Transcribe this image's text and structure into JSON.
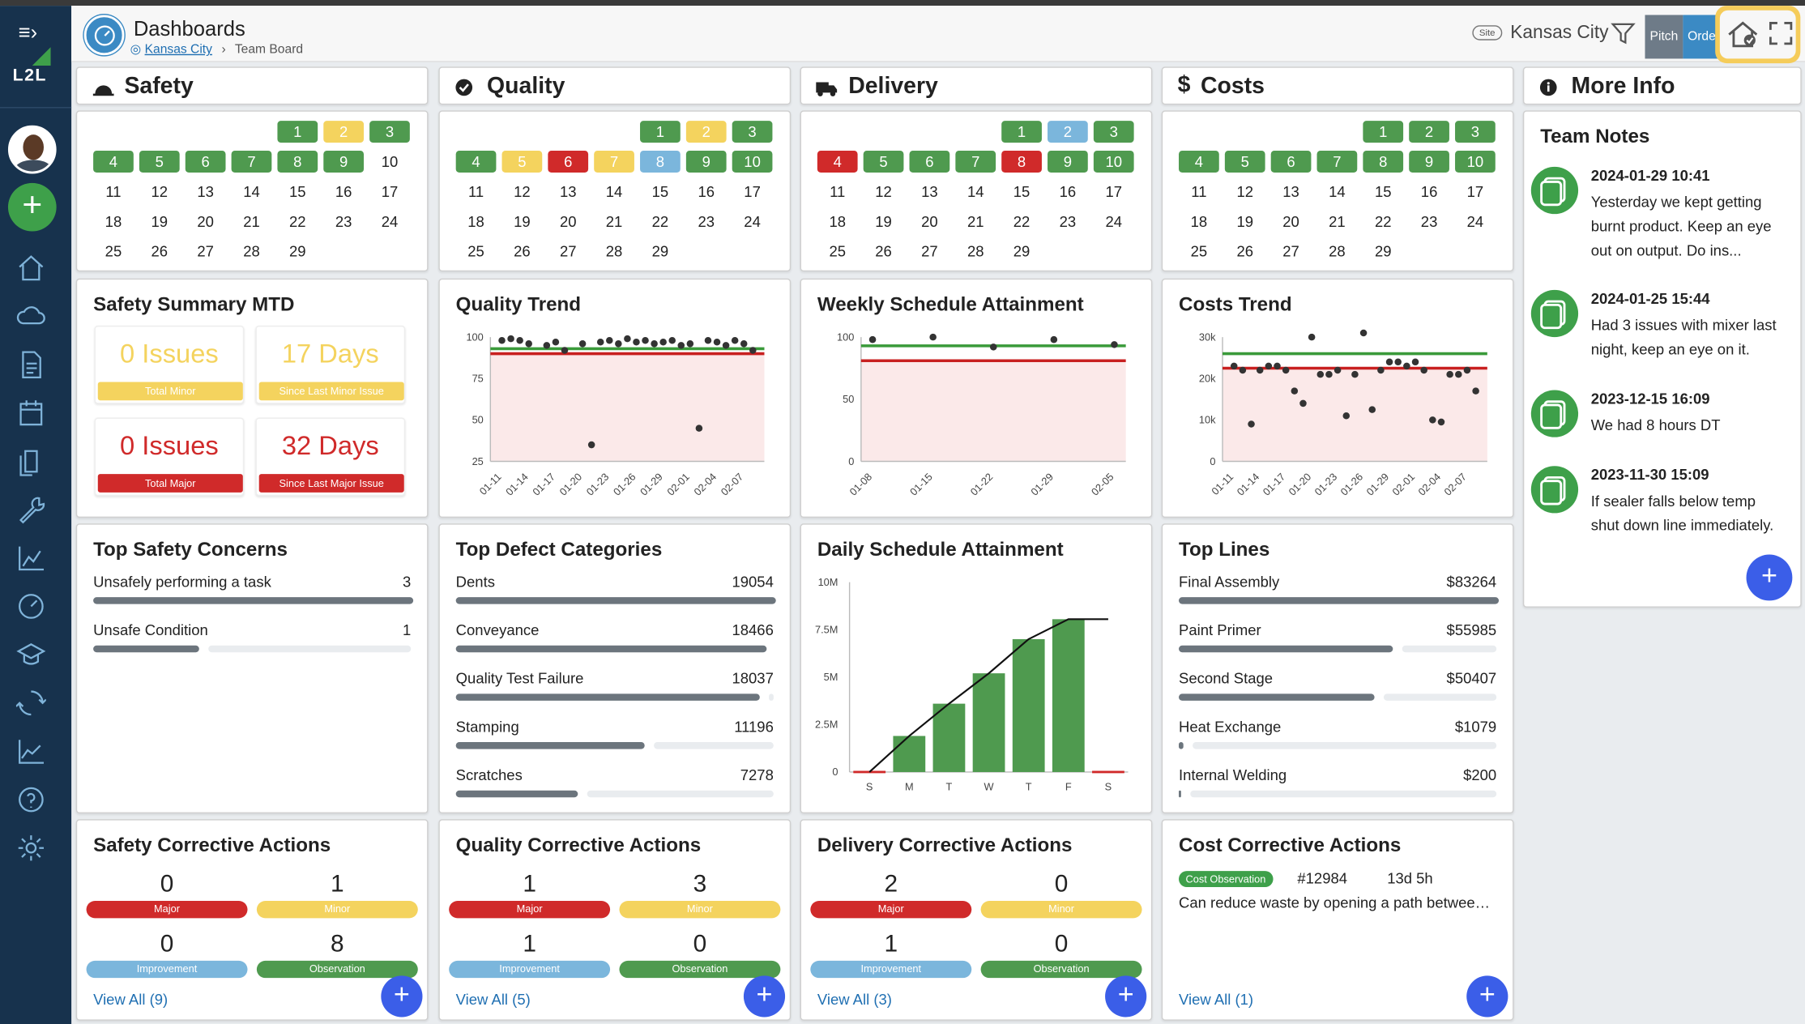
{
  "app": {
    "logo_text": "L2L"
  },
  "header": {
    "title": "Dashboards",
    "crumb_site": "Kansas City",
    "crumb_sep": "›",
    "crumb_page": "Team Board",
    "site_tag": "Site",
    "site_name": "Kansas City",
    "pitch": "Pitch",
    "order": "Order"
  },
  "categories": [
    {
      "name": "Safety",
      "icon": "hard-hat-icon"
    },
    {
      "name": "Quality",
      "icon": "check-circle-icon"
    },
    {
      "name": "Delivery",
      "icon": "truck-icon"
    },
    {
      "name": "Costs",
      "icon": "dollar-icon",
      "prefix": "$"
    },
    {
      "name": "More Info",
      "icon": "info-circle-icon"
    }
  ],
  "colors": {
    "good": "#4f9a4f",
    "minor": "#f4d35e",
    "major": "#d02a2a",
    "improve": "#7bb6dc",
    "accent": "#3b5ee8"
  },
  "calendars": [
    {
      "cat": "Safety",
      "statuses": [
        "g",
        "y",
        "g",
        "g",
        "g",
        "g",
        "g",
        "g",
        "g",
        "n",
        "n",
        "n",
        "n",
        "n",
        "n",
        "n",
        "n",
        "n",
        "n",
        "n",
        "n",
        "n",
        "n",
        "n",
        "n",
        "n",
        "n",
        "n",
        "n"
      ]
    },
    {
      "cat": "Quality",
      "statuses": [
        "g",
        "y",
        "g",
        "g",
        "y",
        "r",
        "y",
        "b",
        "g",
        "g",
        "n",
        "n",
        "n",
        "n",
        "n",
        "n",
        "n",
        "n",
        "n",
        "n",
        "n",
        "n",
        "n",
        "n",
        "n",
        "n",
        "n",
        "n",
        "n"
      ]
    },
    {
      "cat": "Delivery",
      "statuses": [
        "g",
        "b",
        "g",
        "r",
        "g",
        "g",
        "g",
        "r",
        "g",
        "g",
        "n",
        "n",
        "n",
        "n",
        "n",
        "n",
        "n",
        "n",
        "n",
        "n",
        "n",
        "n",
        "n",
        "n",
        "n",
        "n",
        "n",
        "n",
        "n"
      ]
    },
    {
      "cat": "Costs",
      "statuses": [
        "g",
        "g",
        "g",
        "g",
        "g",
        "g",
        "g",
        "g",
        "g",
        "g",
        "n",
        "n",
        "n",
        "n",
        "n",
        "n",
        "n",
        "n",
        "n",
        "n",
        "n",
        "n",
        "n",
        "n",
        "n",
        "n",
        "n",
        "n",
        "n"
      ]
    }
  ],
  "safety_summary": {
    "title": "Safety Summary MTD",
    "stats": [
      {
        "big": "0 Issues",
        "label": "Total Minor",
        "tone": "minor"
      },
      {
        "big": "17 Days",
        "label": "Since Last Minor Issue",
        "tone": "minor"
      },
      {
        "big": "0 Issues",
        "label": "Total Major",
        "tone": "major"
      },
      {
        "big": "32 Days",
        "label": "Since Last Major Issue",
        "tone": "major"
      }
    ]
  },
  "chart_data": [
    {
      "type": "scatter",
      "title": "Quality Trend",
      "x": [
        "01-11",
        "01-12",
        "01-13",
        "01-14",
        "01-15",
        "01-16",
        "01-17",
        "01-18",
        "01-19",
        "01-20",
        "01-21",
        "01-22",
        "01-23",
        "01-24",
        "01-25",
        "01-26",
        "01-27",
        "01-28",
        "01-29",
        "01-30",
        "01-31",
        "02-01",
        "02-02",
        "02-03",
        "02-04",
        "02-05",
        "02-06",
        "02-07",
        "02-08"
      ],
      "xticks": [
        "01-11",
        "01-14",
        "01-17",
        "01-20",
        "01-23",
        "01-26",
        "01-29",
        "02-01",
        "02-04",
        "02-07"
      ],
      "values": [
        98,
        99,
        98,
        96,
        null,
        95,
        97,
        92,
        null,
        96,
        35,
        97,
        98,
        96,
        99,
        97,
        98,
        96,
        97,
        98,
        95,
        96,
        45,
        98,
        97,
        95,
        98,
        96,
        92
      ],
      "target": 93,
      "threshold": 90,
      "ylim": [
        25,
        100
      ],
      "yticks": [
        25,
        50,
        75,
        100
      ]
    },
    {
      "type": "scatter",
      "title": "Weekly Schedule Attainment",
      "x": [
        "01-08",
        "01-15",
        "01-22",
        "01-29",
        "02-05"
      ],
      "values": [
        98,
        100,
        92,
        98,
        94
      ],
      "target": 93,
      "threshold": 81,
      "ylim": [
        0,
        100
      ],
      "yticks": [
        0,
        50,
        100
      ]
    },
    {
      "type": "scatter",
      "title": "Costs Trend",
      "x": [
        "01-11",
        "01-12",
        "01-13",
        "01-14",
        "01-15",
        "01-16",
        "01-17",
        "01-18",
        "01-19",
        "01-20",
        "01-21",
        "01-22",
        "01-23",
        "01-24",
        "01-25",
        "01-26",
        "01-27",
        "01-28",
        "01-29",
        "01-30",
        "01-31",
        "02-01",
        "02-02",
        "02-03",
        "02-04",
        "02-05",
        "02-06",
        "02-07",
        "02-08"
      ],
      "xticks": [
        "01-11",
        "01-14",
        "01-17",
        "01-20",
        "01-23",
        "01-26",
        "01-29",
        "02-01",
        "02-04",
        "02-07"
      ],
      "values": [
        23000,
        22000,
        9000,
        22000,
        23000,
        23000,
        22000,
        17000,
        14000,
        30000,
        21000,
        21000,
        22000,
        11000,
        21000,
        31000,
        12500,
        22000,
        24000,
        24000,
        23000,
        24000,
        22000,
        10000,
        9500,
        21000,
        21000,
        22000,
        17000
      ],
      "target": 26000,
      "threshold": 22500,
      "ylim": [
        0,
        30000
      ],
      "yticks": [
        0,
        10000,
        20000,
        30000
      ],
      "yticklabels": [
        "0",
        "10k",
        "20k",
        "30k"
      ]
    },
    {
      "type": "bar",
      "title": "Daily Schedule Attainment",
      "categories": [
        "S",
        "M",
        "T",
        "W",
        "T",
        "F",
        "S"
      ],
      "values": [
        0,
        1900000,
        3600000,
        5200000,
        7000000,
        8050000,
        0
      ],
      "line": [
        0,
        1900000,
        3600000,
        5200000,
        7000000,
        8050000,
        8050000
      ],
      "ylim": [
        0,
        10000000
      ],
      "yticks": [
        0,
        2500000,
        5000000,
        7500000,
        10000000
      ],
      "yticklabels": [
        "0",
        "2.5M",
        "5M",
        "7.5M",
        "10M"
      ]
    }
  ],
  "top_safety": {
    "title": "Top Safety Concerns",
    "items": [
      {
        "name": "Unsafely performing a task",
        "value": "3",
        "pct": 1.0
      },
      {
        "name": "Unsafe Condition",
        "value": "1",
        "pct": 0.33
      }
    ]
  },
  "top_defects": {
    "title": "Top Defect Categories",
    "items": [
      {
        "name": "Dents",
        "value": "19054",
        "pct": 1.0
      },
      {
        "name": "Conveyance",
        "value": "18466",
        "pct": 0.97
      },
      {
        "name": "Quality Test Failure",
        "value": "18037",
        "pct": 0.95
      },
      {
        "name": "Stamping",
        "value": "11196",
        "pct": 0.59
      },
      {
        "name": "Scratches",
        "value": "7278",
        "pct": 0.38
      }
    ]
  },
  "top_lines": {
    "title": "Top Lines",
    "items": [
      {
        "name": "Final Assembly",
        "value": "$83264",
        "pct": 1.0
      },
      {
        "name": "Paint Primer",
        "value": "$55985",
        "pct": 0.67
      },
      {
        "name": "Second Stage",
        "value": "$50407",
        "pct": 0.61
      },
      {
        "name": "Heat Exchange",
        "value": "$1079",
        "pct": 0.013
      },
      {
        "name": "Internal Welding",
        "value": "$200",
        "pct": 0.003
      }
    ]
  },
  "corrective": [
    {
      "title": "Safety Corrective Actions",
      "major": "0",
      "minor": "1",
      "improvement": "0",
      "observation": "8",
      "view_all": "View All (9)"
    },
    {
      "title": "Quality Corrective Actions",
      "major": "1",
      "minor": "3",
      "improvement": "1",
      "observation": "0",
      "view_all": "View All (5)"
    },
    {
      "title": "Delivery Corrective Actions",
      "major": "2",
      "minor": "0",
      "improvement": "1",
      "observation": "0",
      "view_all": "View All (3)"
    }
  ],
  "ca_labels": {
    "major": "Major",
    "minor": "Minor",
    "improvement": "Improvement",
    "observation": "Observation"
  },
  "cost_ca": {
    "title": "Cost Corrective Actions",
    "badge": "Cost Observation",
    "id": "#12984",
    "age": "13d 5h",
    "desc": "Can reduce waste by opening a path betwee…",
    "view_all": "View All (1)"
  },
  "notes": {
    "title": "Team Notes",
    "items": [
      {
        "date": "2024-01-29 10:41",
        "text": "Yesterday we kept getting burnt product. Keep an eye out on output. Do ins..."
      },
      {
        "date": "2024-01-25 15:44",
        "text": "Had 3 issues with mixer last night, keep an eye on it."
      },
      {
        "date": "2023-12-15 16:09",
        "text": "We had 8 hours DT"
      },
      {
        "date": "2023-11-30 15:09",
        "text": "If sealer falls below temp shut down line immediately."
      }
    ]
  },
  "fab_label": "+"
}
